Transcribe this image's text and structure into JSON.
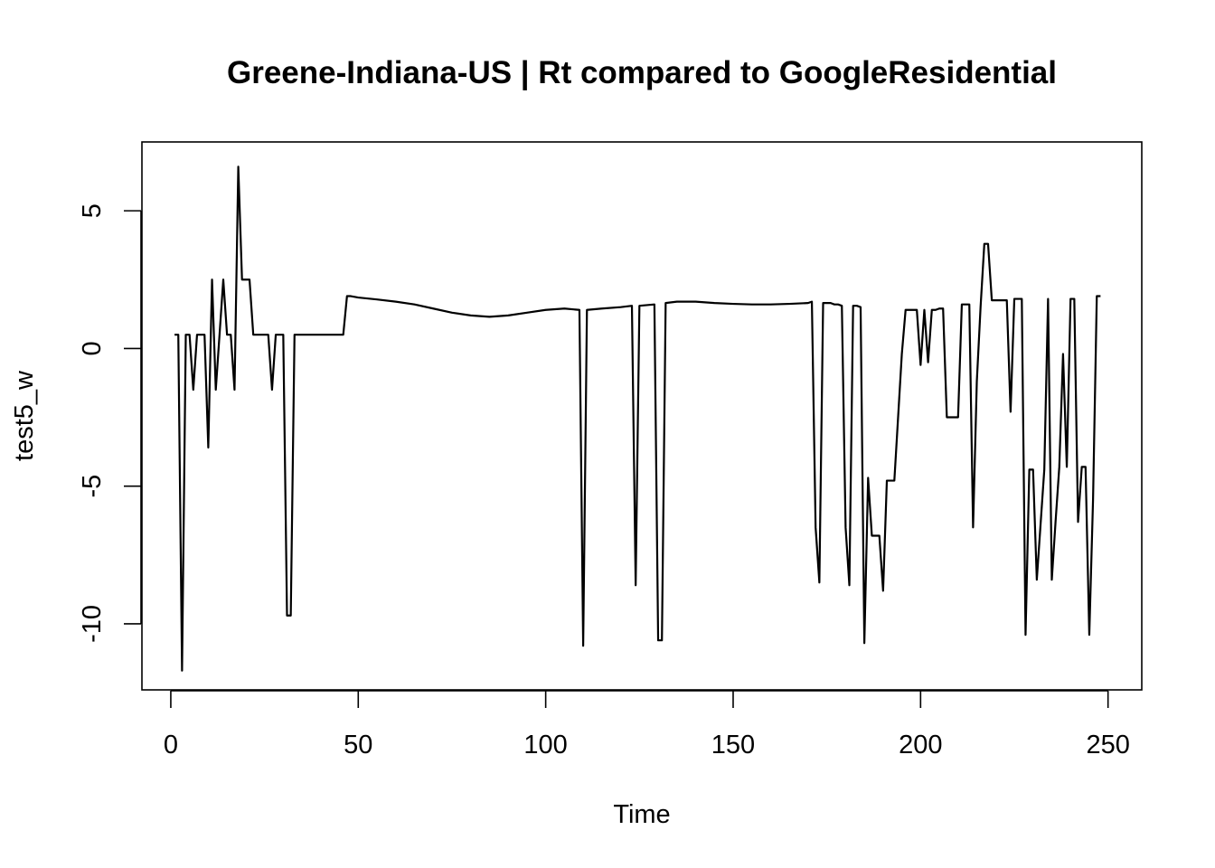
{
  "chart_data": {
    "type": "line",
    "title": "Greene-Indiana-US | Rt compared to GoogleResidential",
    "xlabel": "Time",
    "ylabel": "test5_w",
    "xlim": [
      -7.7,
      259
    ],
    "ylim": [
      -12.4,
      7.5
    ],
    "xticks": [
      0,
      50,
      100,
      150,
      200,
      250
    ],
    "yticks": [
      -10,
      -5,
      0,
      5
    ],
    "grid": false,
    "legend": "none",
    "line_color": "#000000",
    "series": [
      {
        "x": [
          1,
          2,
          3,
          4,
          5,
          6,
          7,
          8,
          9,
          10,
          11,
          12,
          13,
          14,
          15,
          16,
          17,
          18,
          19,
          20,
          21,
          22,
          23,
          24,
          25,
          26,
          27,
          28,
          29,
          30,
          31,
          32,
          33,
          34,
          35,
          36,
          37,
          38,
          39,
          40,
          41,
          42,
          43,
          44,
          45,
          46,
          47,
          48,
          50,
          55,
          60,
          65,
          70,
          75,
          80,
          85,
          90,
          95,
          100,
          105,
          109,
          110,
          111,
          115,
          120,
          123,
          124,
          125,
          129,
          130,
          131,
          132,
          135,
          140,
          145,
          150,
          155,
          160,
          165,
          170,
          171,
          172,
          173,
          174,
          175,
          176,
          177,
          178,
          179,
          180,
          181,
          182,
          183,
          184,
          185,
          186,
          187,
          188,
          189,
          190,
          191,
          192,
          193,
          194,
          195,
          196,
          197,
          198,
          199,
          200,
          201,
          202,
          203,
          204,
          205,
          206,
          207,
          208,
          209,
          210,
          211,
          212,
          213,
          214,
          215,
          216,
          217,
          218,
          219,
          220,
          221,
          222,
          223,
          224,
          225,
          226,
          227,
          228,
          229,
          230,
          231,
          232,
          233,
          234,
          235,
          236,
          237,
          238,
          239,
          240,
          241,
          242,
          243,
          244,
          245,
          246,
          247,
          248
        ],
        "y": [
          0.5,
          0.5,
          -11.7,
          0.5,
          0.5,
          -1.5,
          0.5,
          0.5,
          0.5,
          -3.6,
          2.5,
          -1.5,
          0.5,
          2.5,
          0.5,
          0.5,
          -1.5,
          6.6,
          2.5,
          2.5,
          2.5,
          0.5,
          0.5,
          0.5,
          0.5,
          0.5,
          -1.5,
          0.5,
          0.5,
          0.5,
          -9.7,
          -9.7,
          0.5,
          0.5,
          0.5,
          0.5,
          0.5,
          0.5,
          0.5,
          0.5,
          0.5,
          0.5,
          0.5,
          0.5,
          0.5,
          0.5,
          1.9,
          1.9,
          1.85,
          1.78,
          1.7,
          1.6,
          1.45,
          1.3,
          1.2,
          1.15,
          1.2,
          1.3,
          1.4,
          1.45,
          1.4,
          -10.8,
          1.4,
          1.45,
          1.5,
          1.55,
          -8.6,
          1.55,
          1.6,
          -10.6,
          -10.6,
          1.65,
          1.7,
          1.7,
          1.65,
          1.62,
          1.6,
          1.6,
          1.62,
          1.65,
          1.7,
          -6.5,
          -8.5,
          1.65,
          1.65,
          1.65,
          1.6,
          1.6,
          1.55,
          -6.5,
          -8.6,
          1.55,
          1.55,
          1.5,
          -10.7,
          -4.7,
          -6.8,
          -6.8,
          -6.8,
          -8.8,
          -4.8,
          -4.8,
          -4.8,
          -2.5,
          -0.2,
          1.4,
          1.4,
          1.4,
          1.4,
          -0.6,
          1.4,
          -0.5,
          1.4,
          1.4,
          1.45,
          1.45,
          -2.5,
          -2.5,
          -2.5,
          -2.5,
          1.6,
          1.6,
          1.6,
          -6.5,
          -1.2,
          1.5,
          3.8,
          3.8,
          1.75,
          1.75,
          1.75,
          1.75,
          1.75,
          -2.3,
          1.8,
          1.8,
          1.8,
          -10.4,
          -4.4,
          -4.4,
          -8.4,
          -6.4,
          -4.4,
          1.8,
          -8.4,
          -6.3,
          -4.3,
          -0.2,
          -4.3,
          1.8,
          1.8,
          -6.3,
          -4.3,
          -4.3,
          -10.4,
          -5.5,
          1.9,
          1.9
        ]
      }
    ]
  }
}
